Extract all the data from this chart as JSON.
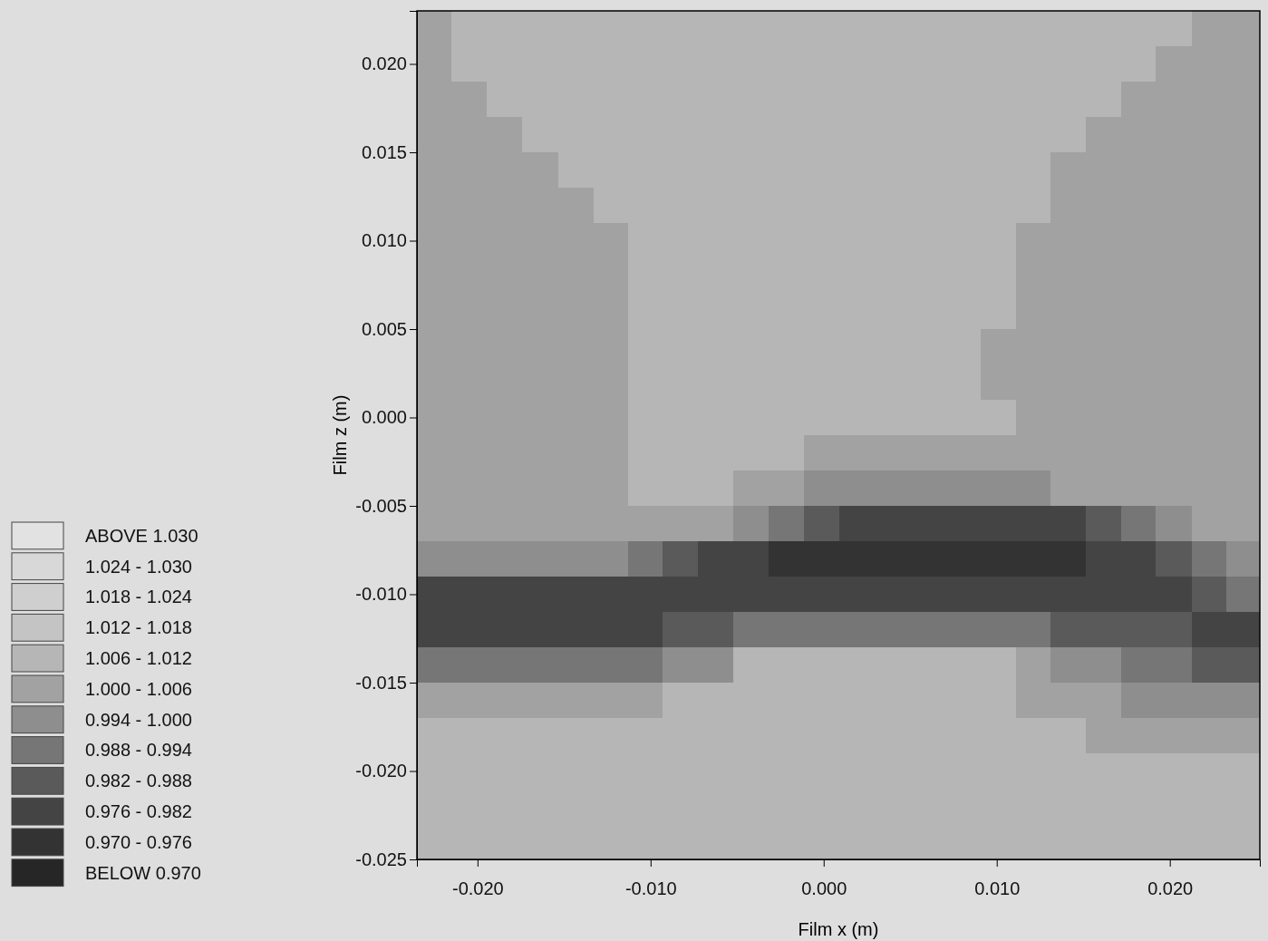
{
  "chart_data": {
    "type": "heatmap",
    "xlabel": "Film x (m)",
    "ylabel": "Film z (m)",
    "x": [
      -0.0225,
      -0.0205,
      -0.0184,
      -0.0164,
      -0.0143,
      -0.0123,
      -0.0103,
      -0.0083,
      -0.0062,
      -0.0042,
      -0.0022,
      -0.0001,
      0.0019,
      0.004,
      0.006,
      0.008,
      0.0101,
      0.0121,
      0.0141,
      0.0162,
      0.0182,
      0.0202,
      0.0223,
      0.0242
    ],
    "y": [
      0.022,
      0.02,
      0.018,
      0.016,
      0.014,
      0.012,
      0.01,
      0.008,
      0.006,
      0.004,
      0.002,
      0.0,
      -0.002,
      -0.004,
      -0.006,
      -0.008,
      -0.01,
      -0.012,
      -0.014,
      -0.016,
      -0.018,
      -0.02,
      -0.022,
      -0.024
    ],
    "xlim": [
      -0.0235,
      0.0252
    ],
    "ylim": [
      -0.025,
      0.023
    ],
    "xticks": [
      {
        "value": -0.02,
        "label": "-0.020"
      },
      {
        "value": -0.01,
        "label": "-0.010"
      },
      {
        "value": 0,
        "label": "0.000"
      },
      {
        "value": 0.01,
        "label": "0.010"
      },
      {
        "value": 0.02,
        "label": "0.020"
      }
    ],
    "yticks": [
      {
        "value": -0.025,
        "label": "-0.025"
      },
      {
        "value": -0.02,
        "label": "-0.020"
      },
      {
        "value": -0.015,
        "label": "-0.015"
      },
      {
        "value": -0.01,
        "label": "-0.010"
      },
      {
        "value": -0.005,
        "label": "-0.005"
      },
      {
        "value": 0,
        "label": "0.000"
      },
      {
        "value": 0.005,
        "label": "0.005"
      },
      {
        "value": 0.01,
        "label": "0.010"
      },
      {
        "value": 0.015,
        "label": "0.015"
      },
      {
        "value": 0.02,
        "label": "0.020"
      }
    ],
    "clim": [
      0.964,
      1.036
    ],
    "cticks": [
      {
        "value": 0.967,
        "label": "BELOW 0.970"
      },
      {
        "value": 0.973,
        "label": "0.970 - 0.976"
      },
      {
        "value": 0.979,
        "label": "0.976 - 0.982"
      },
      {
        "value": 0.985,
        "label": "0.982 - 0.988"
      },
      {
        "value": 0.991,
        "label": "0.988 - 0.994"
      },
      {
        "value": 0.997,
        "label": "0.994 - 1.000"
      },
      {
        "value": 1.003,
        "label": "1.000 - 1.006"
      },
      {
        "value": 1.009,
        "label": "1.006 - 1.012"
      },
      {
        "value": 1.015,
        "label": "1.012 - 1.018"
      },
      {
        "value": 1.021,
        "label": "1.018 - 1.024"
      },
      {
        "value": 1.027,
        "label": "1.024 - 1.030"
      },
      {
        "value": 1.033,
        "label": "ABOVE 1.030"
      }
    ],
    "colors": [
      "#262626",
      "#333333",
      "#444444",
      "#5a5a5a",
      "#767676",
      "#8e8e8e",
      "#a2a2a2",
      "#b6b6b6",
      "#c4c4c4",
      "#cfcfcf",
      "#d8d8d8",
      "#e2e2e2"
    ],
    "cells": [
      [
        1.003,
        1.009,
        1.009,
        1.009,
        1.009,
        1.009,
        1.009,
        1.009,
        1.009,
        1.009,
        1.009,
        1.009,
        1.009,
        1.009,
        1.009,
        1.009,
        1.009,
        1.009,
        1.009,
        1.009,
        1.009,
        1.009,
        1.003,
        1.003
      ],
      [
        1.003,
        1.009,
        1.009,
        1.009,
        1.009,
        1.009,
        1.009,
        1.009,
        1.009,
        1.009,
        1.009,
        1.009,
        1.009,
        1.009,
        1.009,
        1.009,
        1.009,
        1.009,
        1.009,
        1.009,
        1.009,
        1.003,
        1.003,
        1.003
      ],
      [
        1.003,
        1.003,
        1.009,
        1.009,
        1.009,
        1.009,
        1.009,
        1.009,
        1.009,
        1.009,
        1.009,
        1.009,
        1.009,
        1.009,
        1.009,
        1.009,
        1.009,
        1.009,
        1.009,
        1.009,
        1.003,
        1.003,
        1.003,
        1.003
      ],
      [
        1.003,
        1.003,
        1.003,
        1.009,
        1.009,
        1.009,
        1.009,
        1.009,
        1.009,
        1.009,
        1.009,
        1.009,
        1.009,
        1.009,
        1.009,
        1.009,
        1.009,
        1.009,
        1.009,
        1.003,
        1.003,
        1.003,
        1.003,
        1.003
      ],
      [
        1.003,
        1.003,
        1.003,
        1.003,
        1.009,
        1.009,
        1.009,
        1.009,
        1.009,
        1.009,
        1.009,
        1.009,
        1.009,
        1.009,
        1.009,
        1.009,
        1.009,
        1.009,
        1.003,
        1.003,
        1.003,
        1.003,
        1.003,
        1.003
      ],
      [
        1.003,
        1.003,
        1.003,
        1.003,
        1.003,
        1.009,
        1.009,
        1.009,
        1.009,
        1.009,
        1.009,
        1.009,
        1.009,
        1.009,
        1.009,
        1.009,
        1.009,
        1.009,
        1.003,
        1.003,
        1.003,
        1.003,
        1.003,
        1.003
      ],
      [
        1.003,
        1.003,
        1.003,
        1.003,
        1.003,
        1.003,
        1.009,
        1.009,
        1.009,
        1.009,
        1.009,
        1.009,
        1.009,
        1.009,
        1.009,
        1.009,
        1.009,
        1.003,
        1.003,
        1.003,
        1.003,
        1.003,
        1.003,
        1.003
      ],
      [
        1.003,
        1.003,
        1.003,
        1.003,
        1.003,
        1.003,
        1.009,
        1.009,
        1.009,
        1.009,
        1.009,
        1.009,
        1.009,
        1.009,
        1.009,
        1.009,
        1.009,
        1.003,
        1.003,
        1.003,
        1.003,
        1.003,
        1.003,
        1.003
      ],
      [
        1.003,
        1.003,
        1.003,
        1.003,
        1.003,
        1.003,
        1.009,
        1.009,
        1.009,
        1.009,
        1.009,
        1.009,
        1.009,
        1.009,
        1.009,
        1.009,
        1.009,
        1.003,
        1.003,
        1.003,
        1.003,
        1.003,
        1.003,
        1.003
      ],
      [
        1.003,
        1.003,
        1.003,
        1.003,
        1.003,
        1.003,
        1.009,
        1.009,
        1.009,
        1.009,
        1.009,
        1.009,
        1.009,
        1.009,
        1.009,
        1.009,
        1.003,
        1.003,
        1.003,
        1.003,
        1.003,
        1.003,
        1.003,
        1.003
      ],
      [
        1.003,
        1.003,
        1.003,
        1.003,
        1.003,
        1.003,
        1.009,
        1.009,
        1.009,
        1.009,
        1.009,
        1.009,
        1.009,
        1.009,
        1.009,
        1.009,
        1.003,
        1.003,
        1.003,
        1.003,
        1.003,
        1.003,
        1.003,
        1.003
      ],
      [
        1.003,
        1.003,
        1.003,
        1.003,
        1.003,
        1.003,
        1.009,
        1.009,
        1.009,
        1.009,
        1.009,
        1.009,
        1.009,
        1.009,
        1.009,
        1.009,
        1.009,
        1.003,
        1.003,
        1.003,
        1.003,
        1.003,
        1.003,
        1.003
      ],
      [
        1.003,
        1.003,
        1.003,
        1.003,
        1.003,
        1.003,
        1.009,
        1.009,
        1.009,
        1.009,
        1.009,
        1.003,
        1.003,
        1.003,
        1.003,
        1.003,
        1.003,
        1.003,
        1.003,
        1.003,
        1.003,
        1.003,
        1.003,
        1.003
      ],
      [
        1.003,
        1.003,
        1.003,
        1.003,
        1.003,
        1.003,
        1.009,
        1.009,
        1.009,
        1.003,
        1.003,
        0.997,
        0.997,
        0.997,
        0.997,
        0.997,
        0.997,
        0.997,
        1.003,
        1.003,
        1.003,
        1.003,
        1.003,
        1.003
      ],
      [
        1.003,
        1.003,
        1.003,
        1.003,
        1.003,
        1.003,
        1.003,
        1.003,
        1.003,
        0.997,
        0.991,
        0.985,
        0.979,
        0.979,
        0.979,
        0.979,
        0.979,
        0.979,
        0.979,
        0.985,
        0.991,
        0.997,
        1.003,
        1.003
      ],
      [
        0.997,
        0.997,
        0.997,
        0.997,
        0.997,
        0.997,
        0.991,
        0.985,
        0.979,
        0.979,
        0.973,
        0.973,
        0.973,
        0.973,
        0.973,
        0.973,
        0.973,
        0.973,
        0.973,
        0.979,
        0.979,
        0.985,
        0.991,
        0.997
      ],
      [
        0.979,
        0.979,
        0.979,
        0.979,
        0.979,
        0.979,
        0.979,
        0.979,
        0.979,
        0.979,
        0.979,
        0.979,
        0.979,
        0.979,
        0.979,
        0.979,
        0.979,
        0.979,
        0.979,
        0.979,
        0.979,
        0.979,
        0.985,
        0.991
      ],
      [
        0.979,
        0.979,
        0.979,
        0.979,
        0.979,
        0.979,
        0.979,
        0.985,
        0.985,
        0.991,
        0.991,
        0.991,
        0.991,
        0.991,
        0.991,
        0.991,
        0.991,
        0.991,
        0.985,
        0.985,
        0.985,
        0.985,
        0.979,
        0.979
      ],
      [
        0.991,
        0.991,
        0.991,
        0.991,
        0.991,
        0.991,
        0.991,
        0.997,
        0.997,
        1.009,
        1.009,
        1.009,
        1.009,
        1.009,
        1.009,
        1.009,
        1.009,
        1.003,
        0.997,
        0.997,
        0.991,
        0.991,
        0.985,
        0.985
      ],
      [
        1.003,
        1.003,
        1.003,
        1.003,
        1.003,
        1.003,
        1.003,
        1.009,
        1.009,
        1.009,
        1.009,
        1.009,
        1.009,
        1.009,
        1.009,
        1.009,
        1.009,
        1.003,
        1.003,
        1.003,
        0.997,
        0.997,
        0.997,
        0.997
      ],
      [
        1.009,
        1.009,
        1.009,
        1.009,
        1.009,
        1.009,
        1.009,
        1.009,
        1.009,
        1.009,
        1.009,
        1.009,
        1.009,
        1.009,
        1.009,
        1.009,
        1.009,
        1.009,
        1.009,
        1.003,
        1.003,
        1.003,
        1.003,
        1.003
      ],
      [
        1.009,
        1.009,
        1.009,
        1.009,
        1.009,
        1.009,
        1.009,
        1.009,
        1.009,
        1.009,
        1.009,
        1.009,
        1.009,
        1.009,
        1.009,
        1.009,
        1.009,
        1.009,
        1.009,
        1.009,
        1.009,
        1.009,
        1.009,
        1.009
      ],
      [
        1.009,
        1.009,
        1.009,
        1.009,
        1.009,
        1.009,
        1.009,
        1.009,
        1.009,
        1.009,
        1.009,
        1.009,
        1.009,
        1.009,
        1.009,
        1.009,
        1.009,
        1.009,
        1.009,
        1.009,
        1.009,
        1.009,
        1.009,
        1.009
      ],
      [
        1.009,
        1.009,
        1.009,
        1.009,
        1.009,
        1.009,
        1.009,
        1.009,
        1.009,
        1.009,
        1.009,
        1.009,
        1.009,
        1.009,
        1.009,
        1.009,
        1.009,
        1.009,
        1.009,
        1.009,
        1.009,
        1.009,
        1.009,
        1.009
      ]
    ]
  }
}
